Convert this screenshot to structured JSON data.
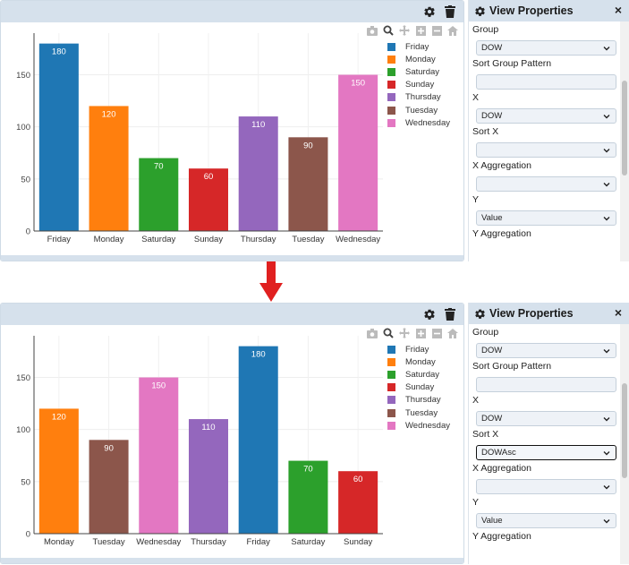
{
  "header": {
    "settings_icon": "gear-icon",
    "delete_icon": "trash-icon"
  },
  "modebar": {
    "icons": [
      "camera-icon",
      "zoom-icon",
      "pan-icon",
      "zoom-in-icon",
      "zoom-out-icon",
      "home-icon"
    ]
  },
  "colors": {
    "header_bg": "#d6e1ec",
    "Friday": "#1f77b4",
    "Monday": "#ff7f0e",
    "Saturday": "#2ca02c",
    "Sunday": "#d62728",
    "Thursday": "#9467bd",
    "Tuesday": "#8c564b",
    "Wednesday": "#e377c2",
    "arrow": "#e02020"
  },
  "legend": {
    "items": [
      "Friday",
      "Monday",
      "Saturday",
      "Sunday",
      "Thursday",
      "Tuesday",
      "Wednesday"
    ]
  },
  "chart_data": [
    {
      "type": "bar",
      "categories": [
        "Friday",
        "Monday",
        "Saturday",
        "Sunday",
        "Thursday",
        "Tuesday",
        "Wednesday"
      ],
      "values": [
        180,
        120,
        70,
        60,
        110,
        90,
        150
      ],
      "colors": [
        "#1f77b4",
        "#ff7f0e",
        "#2ca02c",
        "#d62728",
        "#9467bd",
        "#8c564b",
        "#e377c2"
      ],
      "ylim": [
        0,
        190
      ],
      "yticks": [
        0,
        50,
        100,
        150
      ],
      "title": "",
      "xlabel": "",
      "ylabel": "",
      "grid": true,
      "legend": "right"
    },
    {
      "type": "bar",
      "categories": [
        "Monday",
        "Tuesday",
        "Wednesday",
        "Thursday",
        "Friday",
        "Saturday",
        "Sunday"
      ],
      "values": [
        120,
        90,
        150,
        110,
        180,
        70,
        60
      ],
      "colors": [
        "#ff7f0e",
        "#8c564b",
        "#e377c2",
        "#9467bd",
        "#1f77b4",
        "#2ca02c",
        "#d62728"
      ],
      "ylim": [
        0,
        190
      ],
      "yticks": [
        0,
        50,
        100,
        150
      ],
      "title": "",
      "xlabel": "",
      "ylabel": "",
      "grid": true,
      "legend": "right"
    }
  ],
  "props": {
    "title": "View Properties",
    "close": "×",
    "icon": "gear-icon",
    "before": {
      "group_label": "Group",
      "group_value": "DOW",
      "sort_group_label": "Sort Group Pattern",
      "sort_group_value": "",
      "x_label": "X",
      "x_value": "DOW",
      "sort_x_label": "Sort X",
      "sort_x_value": "",
      "x_agg_label": "X Aggregation",
      "x_agg_value": "",
      "y_label": "Y",
      "y_value": "Value",
      "y_agg_label": "Y Aggregation"
    },
    "after": {
      "group_label": "Group",
      "group_value": "DOW",
      "sort_group_label": "Sort Group Pattern",
      "sort_group_value": "",
      "x_label": "X",
      "x_value": "DOW",
      "sort_x_label": "Sort X",
      "sort_x_value": "DOWAsc",
      "x_agg_label": "X Aggregation",
      "x_agg_value": "",
      "y_label": "Y",
      "y_value": "Value",
      "y_agg_label": "Y Aggregation"
    }
  },
  "arrow_icon": "down-arrow-icon"
}
